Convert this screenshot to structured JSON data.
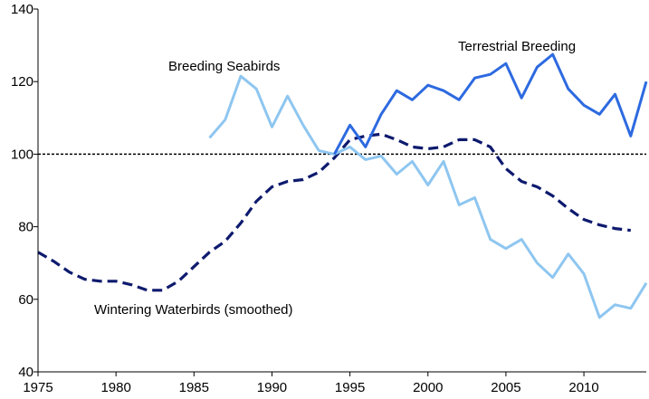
{
  "chart_data": {
    "type": "line",
    "title": "",
    "xlabel": "",
    "ylabel": "",
    "xlim": [
      1975,
      2014
    ],
    "ylim": [
      40,
      140
    ],
    "xticks": [
      1975,
      1980,
      1985,
      1990,
      1995,
      2000,
      2005,
      2010
    ],
    "yticks": [
      40,
      60,
      80,
      100,
      120,
      140
    ],
    "reference_line": {
      "y": 100,
      "style": "dotted",
      "color": "#000000"
    },
    "series": [
      {
        "name": "Wintering Waterbirds (smoothed)",
        "color": "#0d1a6e",
        "style": "dashed",
        "x": [
          1975,
          1976,
          1977,
          1978,
          1979,
          1980,
          1981,
          1982,
          1983,
          1984,
          1985,
          1986,
          1987,
          1988,
          1989,
          1990,
          1991,
          1992,
          1993,
          1994,
          1995,
          1996,
          1997,
          1998,
          1999,
          2000,
          2001,
          2002,
          2003,
          2004,
          2005,
          2006,
          2007,
          2008,
          2009,
          2010,
          2011,
          2012,
          2013
        ],
        "y": [
          73,
          70.5,
          67.5,
          65.5,
          65,
          65,
          64,
          62.5,
          62.5,
          65,
          69,
          73,
          76,
          81,
          87,
          91,
          92.5,
          93,
          95,
          99,
          104,
          105,
          105.5,
          104,
          102,
          101.5,
          102,
          104,
          104,
          102,
          96,
          92.5,
          91,
          88.5,
          85,
          82,
          80.5,
          79.5,
          79
        ]
      },
      {
        "name": "Breeding Seabirds",
        "color": "#8ec6f0",
        "style": "solid",
        "x": [
          1986,
          1987,
          1988,
          1989,
          1990,
          1991,
          1992,
          1993,
          1994,
          1995,
          1996,
          1997,
          1998,
          1999,
          2000,
          2001,
          2002,
          2003,
          2004,
          2005,
          2006,
          2007,
          2008,
          2009,
          2010,
          2011,
          2012,
          2013,
          2014
        ],
        "y": [
          104.5,
          109.5,
          121.5,
          118,
          107.5,
          116,
          108,
          101,
          100,
          102,
          98.5,
          99.5,
          94.5,
          98,
          91.5,
          98,
          86,
          88,
          76.5,
          74,
          76.5,
          70,
          66,
          72.5,
          67,
          55,
          58.5,
          57.5,
          64.5
        ]
      },
      {
        "name": "Terrestrial Breeding",
        "color": "#2d6ae0",
        "style": "solid",
        "x": [
          1994,
          1995,
          1996,
          1997,
          1998,
          1999,
          2000,
          2001,
          2002,
          2003,
          2004,
          2005,
          2006,
          2007,
          2008,
          2009,
          2010,
          2011,
          2012,
          2013,
          2014
        ],
        "y": [
          100,
          108,
          102,
          111,
          117.5,
          115,
          119,
          117.5,
          115,
          121,
          122,
          125,
          115.5,
          124,
          127.5,
          118,
          113.5,
          111,
          116.5,
          105,
          120
        ]
      }
    ],
    "annotations": [
      {
        "text": "Breeding Seabirds",
        "series": "Breeding Seabirds"
      },
      {
        "text": "Terrestrial Breeding",
        "series": "Terrestrial Breeding"
      },
      {
        "text": "Wintering Waterbirds (smoothed)",
        "series": "Wintering Waterbirds (smoothed)"
      }
    ]
  }
}
